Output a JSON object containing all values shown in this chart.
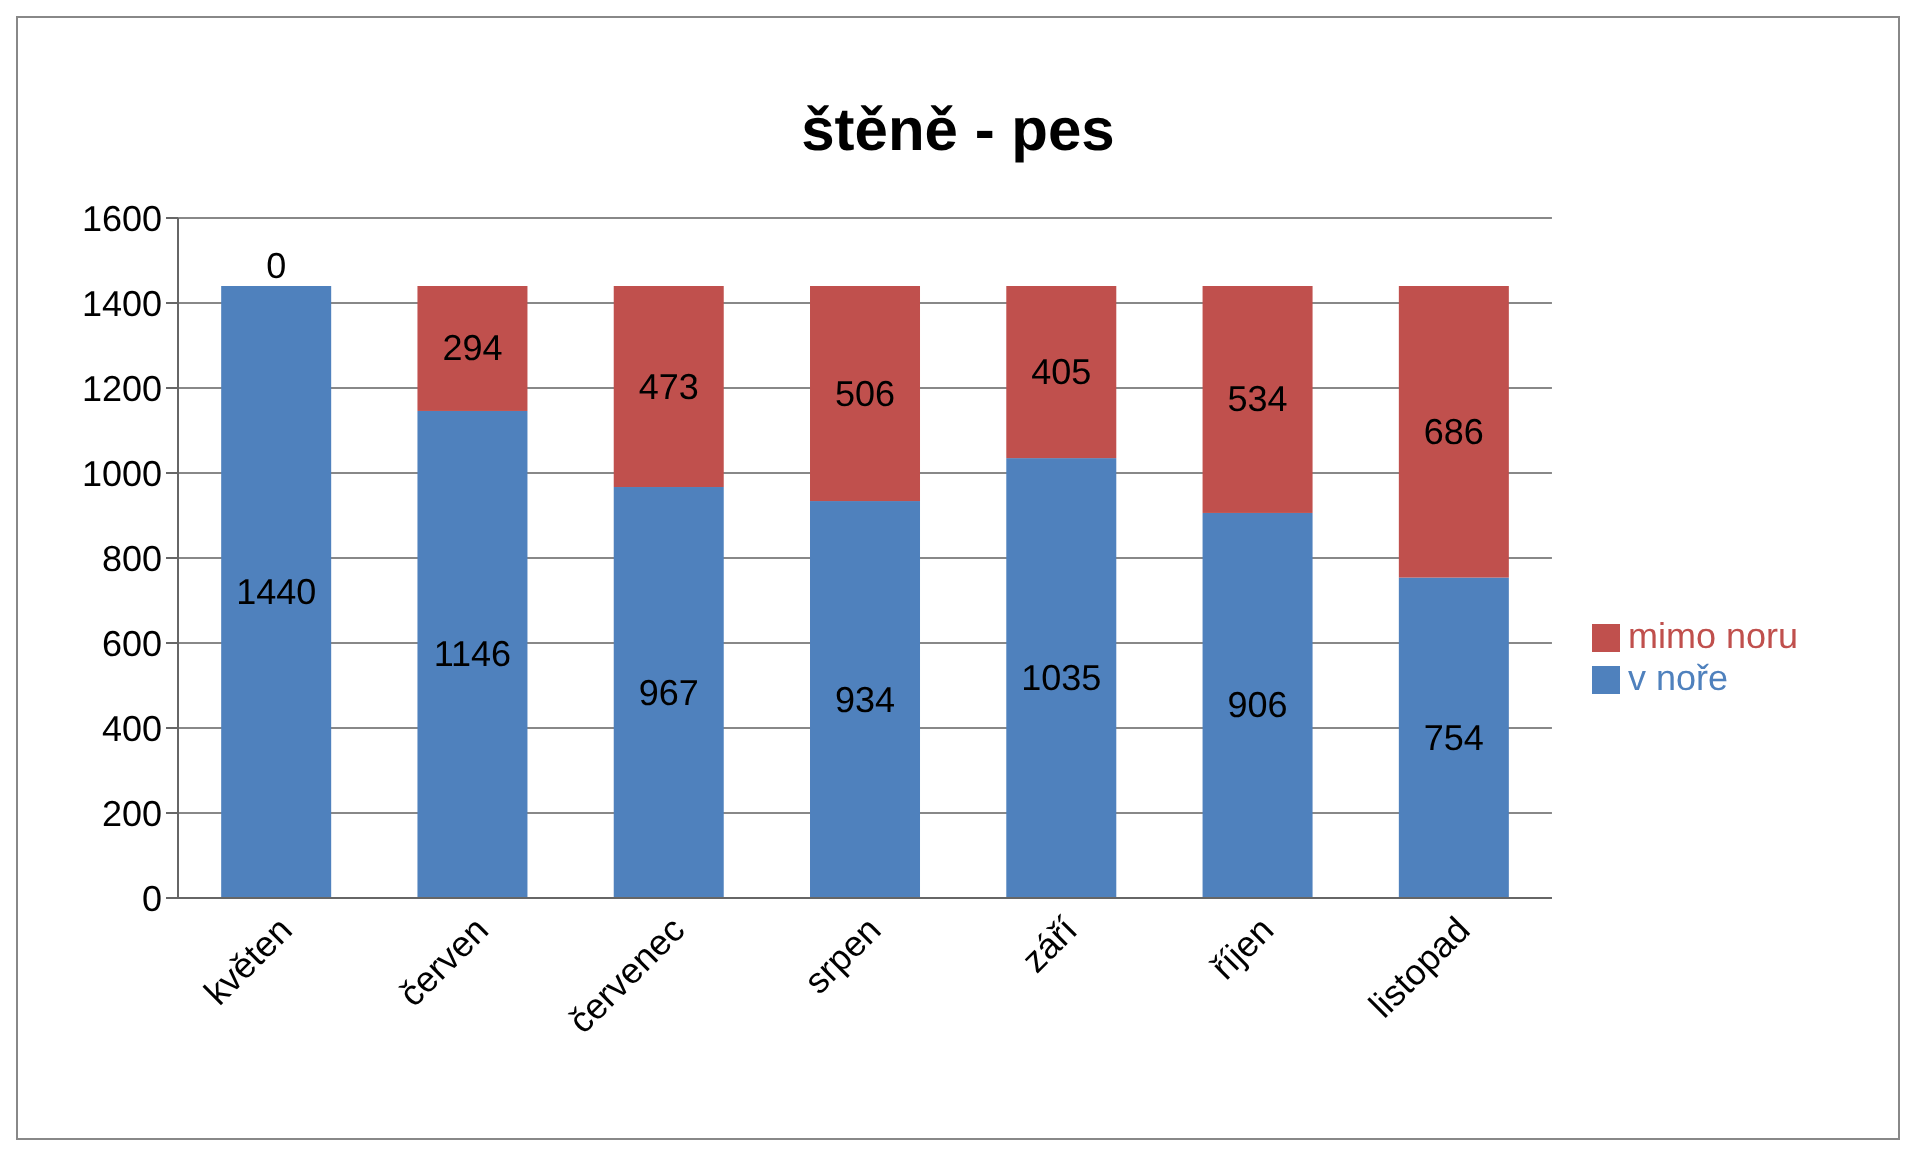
{
  "chart_data": {
    "type": "bar",
    "title": "štěně - pes",
    "stacked": true,
    "data_labels": true,
    "grid": "y",
    "legend": "right",
    "categories": [
      "květen",
      "červen",
      "červenec",
      "srpen",
      "září",
      "říjen",
      "listopad"
    ],
    "series": [
      {
        "name": "v noře",
        "color": "#4f81bd",
        "values": [
          1440,
          1146,
          967,
          934,
          1035,
          906,
          754
        ]
      },
      {
        "name": "mimo noru",
        "color": "#c0504d",
        "values": [
          0,
          294,
          473,
          506,
          405,
          534,
          686
        ]
      }
    ],
    "ylim": [
      0,
      1600
    ],
    "yticks": [
      0,
      200,
      400,
      600,
      800,
      1000,
      1200,
      1400,
      1600
    ]
  }
}
